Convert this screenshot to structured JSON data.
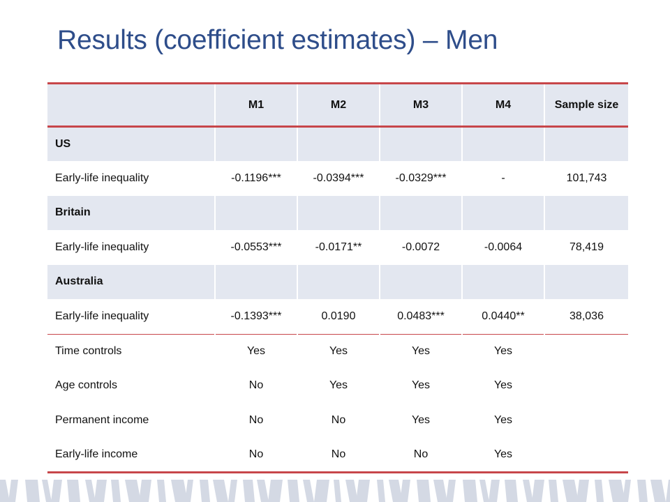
{
  "slide": {
    "title": "Results (coefficient estimates) – Men"
  },
  "table": {
    "headers": [
      "",
      "M1",
      "M2",
      "M3",
      "M4",
      "Sample size"
    ],
    "rows": [
      {
        "type": "section",
        "cells": [
          "US",
          "",
          "",
          "",
          "",
          ""
        ]
      },
      {
        "type": "data",
        "cells": [
          "Early-life inequality",
          "-0.1196***",
          "-0.0394***",
          "-0.0329***",
          "-",
          "101,743"
        ]
      },
      {
        "type": "section",
        "cells": [
          "Britain",
          "",
          "",
          "",
          "",
          ""
        ]
      },
      {
        "type": "data",
        "cells": [
          "Early-life inequality",
          "-0.0553***",
          "-0.0171**",
          "-0.0072",
          "-0.0064",
          "78,419"
        ]
      },
      {
        "type": "section",
        "cells": [
          "Australia",
          "",
          "",
          "",
          "",
          ""
        ]
      },
      {
        "type": "data",
        "cells": [
          "Early-life inequality",
          "-0.1393***",
          "0.0190",
          "0.0483***",
          "0.0440**",
          "38,036"
        ]
      },
      {
        "type": "data",
        "cells": [
          "Time controls",
          "Yes",
          "Yes",
          "Yes",
          "Yes",
          ""
        ]
      },
      {
        "type": "data",
        "cells": [
          "Age controls",
          "No",
          "Yes",
          "Yes",
          "Yes",
          ""
        ]
      },
      {
        "type": "data",
        "cells": [
          "Permanent income",
          "No",
          "No",
          "Yes",
          "Yes",
          ""
        ]
      },
      {
        "type": "data",
        "cells": [
          "Early-life income",
          "No",
          "No",
          "No",
          "Yes",
          ""
        ]
      }
    ]
  },
  "colors": {
    "title": "#2e4d8a",
    "table_accent": "#c7464a",
    "band_fill": "#e3e7f0",
    "footer_stripes": "#d4d9e4"
  }
}
